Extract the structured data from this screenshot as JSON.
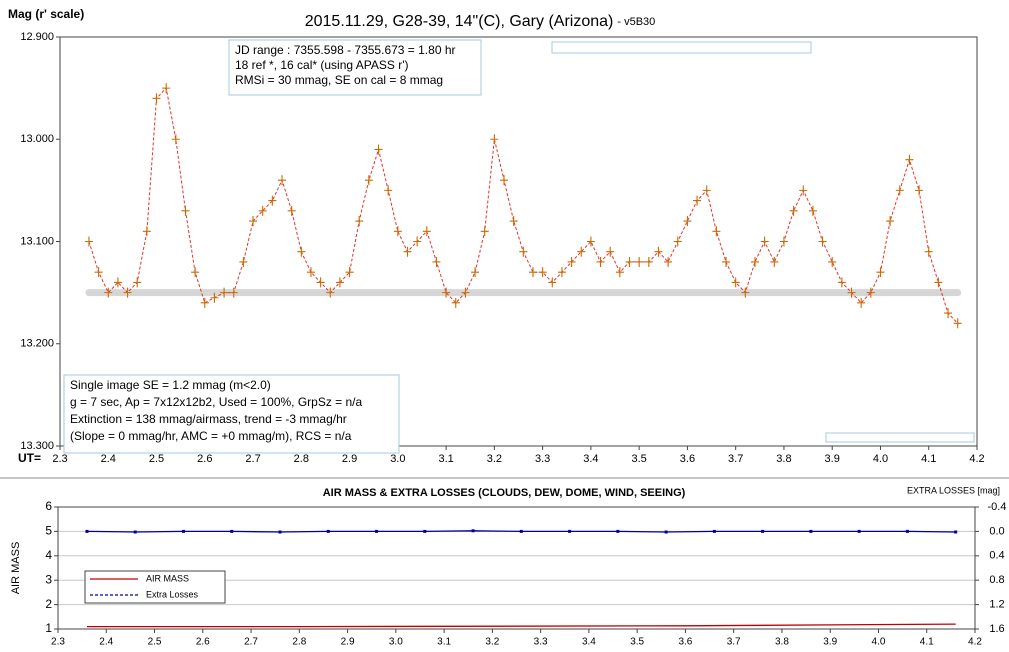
{
  "chart_data": [
    {
      "type": "line",
      "title": "2015.11.29, G28-39, 14\"(C), Gary (Arizona)",
      "subtitle": "- v5B30",
      "ylabel": "Mag (r' scale)",
      "xlabel": "UT=",
      "xlim": [
        2.3,
        4.2
      ],
      "xticks": [
        2.3,
        2.4,
        2.5,
        2.6,
        2.7,
        2.8,
        2.9,
        {
          "value": 3,
          "label": "3.0"
        },
        3.1,
        3.2,
        3.3,
        3.4,
        3.5,
        3.6,
        3.7,
        3.8,
        3.9,
        {
          "value": 4,
          "label": "4.0"
        },
        4.1,
        4.2
      ],
      "ylim": [
        13.3,
        12.9
      ],
      "yticks": [
        {
          "value": 12.9,
          "label": "12.900"
        },
        {
          "value": 13.0,
          "label": "13.000"
        },
        {
          "value": 13.1,
          "label": "13.100"
        },
        {
          "value": 13.2,
          "label": "13.200"
        },
        {
          "value": 13.3,
          "label": "13.300"
        }
      ],
      "grid": false,
      "reference_line": {
        "x": [
          2.36,
          4.16
        ],
        "value": 13.15,
        "color": "#d6d6d6"
      },
      "series": [
        {
          "color": "#cc6a00",
          "line_color": "#e8302a",
          "marker": "+",
          "x": [
            2.36,
            2.38,
            2.4,
            2.42,
            2.44,
            2.46,
            2.48,
            2.5,
            2.52,
            2.54,
            2.56,
            2.58,
            2.6,
            2.62,
            2.64,
            2.66,
            2.68,
            2.7,
            2.72,
            2.74,
            2.76,
            2.78,
            2.8,
            2.82,
            2.84,
            2.86,
            2.88,
            2.9,
            2.92,
            2.94,
            2.96,
            2.98,
            3.0,
            3.02,
            3.04,
            3.06,
            3.08,
            3.1,
            3.12,
            3.14,
            3.16,
            3.18,
            3.2,
            3.22,
            3.24,
            3.26,
            3.28,
            3.3,
            3.32,
            3.34,
            3.36,
            3.38,
            3.4,
            3.42,
            3.44,
            3.46,
            3.48,
            3.5,
            3.52,
            3.54,
            3.56,
            3.58,
            3.6,
            3.62,
            3.64,
            3.66,
            3.68,
            3.7,
            3.72,
            3.74,
            3.76,
            3.78,
            3.8,
            3.82,
            3.84,
            3.86,
            3.88,
            3.9,
            3.92,
            3.94,
            3.96,
            3.98,
            4.0,
            4.02,
            4.04,
            4.06,
            4.08,
            4.1,
            4.12,
            4.14,
            4.16
          ],
          "values": [
            13.1,
            13.13,
            13.15,
            13.14,
            13.15,
            13.14,
            13.09,
            12.96,
            12.95,
            13.0,
            13.07,
            13.13,
            13.16,
            13.155,
            13.15,
            13.15,
            13.12,
            13.08,
            13.07,
            13.06,
            13.04,
            13.07,
            13.11,
            13.13,
            13.14,
            13.15,
            13.14,
            13.13,
            13.08,
            13.04,
            13.01,
            13.05,
            13.09,
            13.11,
            13.1,
            13.09,
            13.12,
            13.15,
            13.16,
            13.15,
            13.13,
            13.09,
            13.0,
            13.04,
            13.08,
            13.11,
            13.13,
            13.13,
            13.14,
            13.13,
            13.12,
            13.11,
            13.1,
            13.12,
            13.11,
            13.13,
            13.12,
            13.12,
            13.12,
            13.11,
            13.12,
            13.1,
            13.08,
            13.06,
            13.05,
            13.09,
            13.12,
            13.14,
            13.15,
            13.12,
            13.1,
            13.12,
            13.1,
            13.07,
            13.05,
            13.07,
            13.1,
            13.12,
            13.14,
            13.15,
            13.16,
            13.15,
            13.13,
            13.08,
            13.05,
            13.02,
            13.05,
            13.11,
            13.14,
            13.17,
            13.18
          ]
        }
      ],
      "annotations": [
        {
          "lines": [
            "JD range : 7355.598 - 7355.673 = 1.80 hr",
            "18 ref *, 16 cal* (using APASS r')",
            "RMSi = 30 mmag, SE on cal = 8 mmag"
          ]
        },
        {
          "lines": [
            "Single image SE = 1.2 mmag (m<2.0)",
            "g = 7 sec, Ap = 7x12x12b2, Used = 100%, GrpSz = n/a",
            "Extinction = 138 mmag/airmass, trend = -3 mmag/hr",
            "(Slope = 0 mmag/hr, AMC = +0 mmag/m), RCS = n/a"
          ]
        }
      ]
    },
    {
      "type": "line",
      "title": "AIR MASS & EXTRA LOSSES (CLOUDS, DEW, DOME, WIND, SEEING)",
      "ylabel": "AIR MASS",
      "y2label": "EXTRA LOSSES [mag]",
      "xlim": [
        2.3,
        4.2
      ],
      "xticks": [
        2.3,
        2.4,
        2.5,
        2.6,
        2.7,
        2.8,
        2.9,
        {
          "value": 3,
          "label": "3.0"
        },
        3.1,
        3.2,
        3.3,
        3.4,
        3.5,
        3.6,
        3.7,
        3.8,
        3.9,
        {
          "value": 4,
          "label": "4.0"
        },
        4.1,
        4.2
      ],
      "ylim": [
        1,
        6
      ],
      "yticks": [
        1,
        2,
        3,
        4,
        5,
        6
      ],
      "y2lim": [
        1.6,
        -0.4
      ],
      "y2ticks": [
        1.6,
        1.2,
        0.8,
        0.4,
        {
          "value": 0,
          "label": "0.0"
        },
        -0.4
      ],
      "grid": true,
      "series": [
        {
          "name": "AIR MASS",
          "color": "#c00000",
          "x": [
            2.36,
            2.8,
            3.1,
            3.6,
            3.9,
            4.16
          ],
          "values": [
            1.1,
            1.1,
            1.11,
            1.13,
            1.17,
            1.2
          ]
        },
        {
          "name": "Extra Losses",
          "color": "#0000aa",
          "axis": "y2",
          "marker": "dot",
          "x": [
            2.36,
            2.46,
            2.56,
            2.66,
            2.76,
            2.86,
            2.96,
            3.06,
            3.16,
            3.26,
            3.36,
            3.46,
            3.56,
            3.66,
            3.76,
            3.86,
            3.96,
            4.06,
            4.16
          ],
          "values": [
            0.0,
            0.01,
            0.0,
            0.0,
            0.01,
            0.0,
            0.0,
            0.0,
            -0.01,
            0.0,
            0.0,
            0.0,
            0.01,
            0.0,
            0.0,
            0.0,
            0.0,
            0.0,
            0.01
          ]
        }
      ]
    }
  ]
}
